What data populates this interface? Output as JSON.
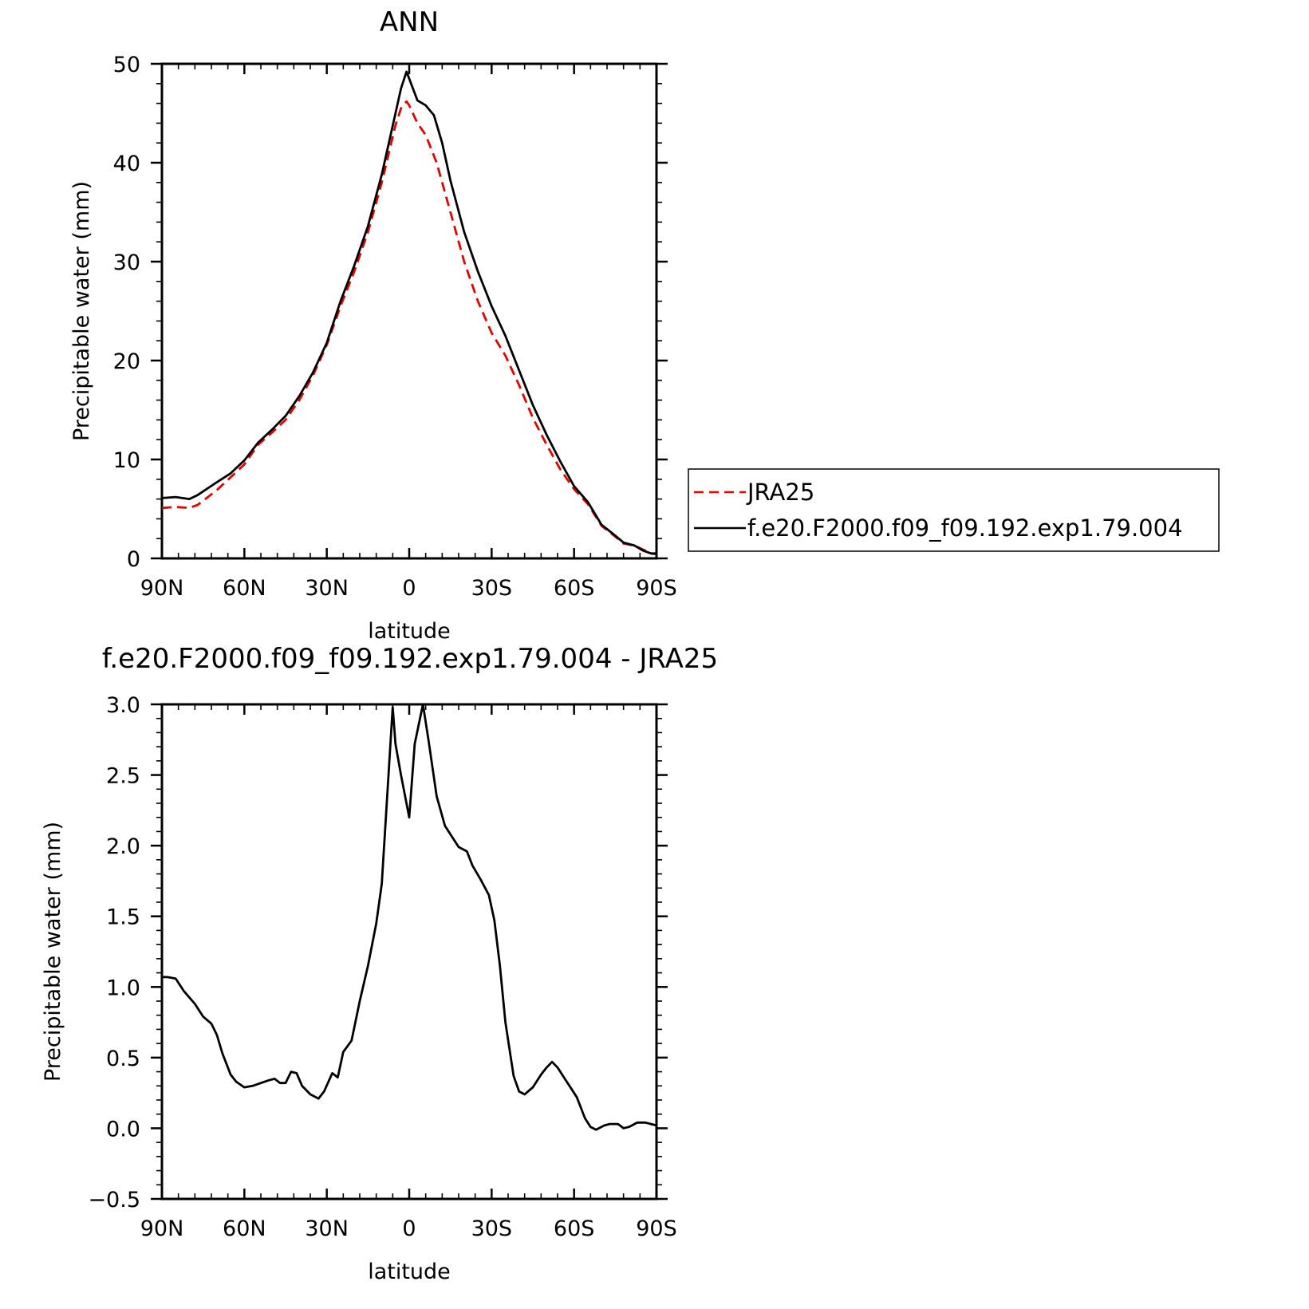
{
  "chart_data": [
    {
      "type": "line",
      "title": "ANN",
      "xlabel": "latitude",
      "ylabel": "Precipitable water (mm)",
      "xlim": [
        90,
        -90
      ],
      "ylim": [
        0,
        50
      ],
      "xticks": [
        90,
        60,
        30,
        0,
        -30,
        -60,
        -90
      ],
      "xtick_labels": [
        "90N",
        "60N",
        "30N",
        "0",
        "30S",
        "60S",
        "90S"
      ],
      "yticks": [
        0,
        10,
        20,
        30,
        40,
        50
      ],
      "ytick_labels": [
        "0",
        "10",
        "20",
        "30",
        "40",
        "50"
      ],
      "legend_position": "right",
      "series": [
        {
          "name": "JRA25",
          "color": "#e00000",
          "style": "dashed",
          "points": [
            [
              90,
              5.1
            ],
            [
              85,
              5.2
            ],
            [
              80,
              5.1
            ],
            [
              77,
              5.4
            ],
            [
              70,
              6.9
            ],
            [
              65,
              8.2
            ],
            [
              60,
              9.5
            ],
            [
              55,
              11.5
            ],
            [
              50,
              12.7
            ],
            [
              45,
              14.0
            ],
            [
              40,
              16.0
            ],
            [
              35,
              18.5
            ],
            [
              30,
              21.6
            ],
            [
              25,
              25.5
            ],
            [
              20,
              29.0
            ],
            [
              15,
              33.0
            ],
            [
              10,
              38.0
            ],
            [
              5,
              43.8
            ],
            [
              3,
              45.5
            ],
            [
              1,
              46.2
            ],
            [
              0,
              45.8
            ],
            [
              -3,
              44.0
            ],
            [
              -6,
              42.8
            ],
            [
              -10,
              40.0
            ],
            [
              -15,
              35.0
            ],
            [
              -20,
              30.0
            ],
            [
              -25,
              26.0
            ],
            [
              -30,
              22.8
            ],
            [
              -35,
              20.5
            ],
            [
              -40,
              17.5
            ],
            [
              -45,
              14.2
            ],
            [
              -50,
              11.5
            ],
            [
              -55,
              9.0
            ],
            [
              -60,
              7.0
            ],
            [
              -65,
              5.5
            ],
            [
              -70,
              3.3
            ],
            [
              -75,
              2.2
            ],
            [
              -78,
              1.5
            ],
            [
              -82,
              1.3
            ],
            [
              -85,
              0.9
            ],
            [
              -88,
              0.5
            ],
            [
              -90,
              0.4
            ]
          ]
        },
        {
          "name": "f.e20.F2000.f09_f09.192.exp1.79.004",
          "color": "#000000",
          "style": "solid",
          "points": [
            [
              90,
              6.1
            ],
            [
              85,
              6.2
            ],
            [
              80,
              6.0
            ],
            [
              77,
              6.4
            ],
            [
              70,
              7.7
            ],
            [
              65,
              8.6
            ],
            [
              60,
              9.9
            ],
            [
              55,
              11.7
            ],
            [
              50,
              13.0
            ],
            [
              45,
              14.4
            ],
            [
              40,
              16.4
            ],
            [
              35,
              18.8
            ],
            [
              30,
              21.8
            ],
            [
              25,
              26.0
            ],
            [
              20,
              29.6
            ],
            [
              15,
              33.6
            ],
            [
              10,
              38.8
            ],
            [
              5,
              45.0
            ],
            [
              3,
              47.5
            ],
            [
              1,
              49.2
            ],
            [
              0,
              48.5
            ],
            [
              -3,
              46.3
            ],
            [
              -6,
              45.8
            ],
            [
              -9,
              44.8
            ],
            [
              -12,
              42.0
            ],
            [
              -15,
              38.2
            ],
            [
              -20,
              33.0
            ],
            [
              -25,
              29.0
            ],
            [
              -30,
              25.5
            ],
            [
              -35,
              22.5
            ],
            [
              -40,
              19.0
            ],
            [
              -45,
              15.5
            ],
            [
              -50,
              12.5
            ],
            [
              -55,
              9.8
            ],
            [
              -60,
              7.3
            ],
            [
              -65,
              5.7
            ],
            [
              -70,
              3.4
            ],
            [
              -75,
              2.3
            ],
            [
              -78,
              1.6
            ],
            [
              -82,
              1.3
            ],
            [
              -85,
              0.8
            ],
            [
              -88,
              0.5
            ],
            [
              -90,
              0.5
            ]
          ]
        }
      ]
    },
    {
      "type": "line",
      "title": "f.e20.F2000.f09_f09.192.exp1.79.004 - JRA25",
      "xlabel": "latitude",
      "ylabel": "Precipitable water (mm)",
      "xlim": [
        90,
        -90
      ],
      "ylim": [
        -0.5,
        3.0
      ],
      "xticks": [
        90,
        60,
        30,
        0,
        -30,
        -60,
        -90
      ],
      "xtick_labels": [
        "90N",
        "60N",
        "30N",
        "0",
        "30S",
        "60S",
        "90S"
      ],
      "yticks": [
        -0.5,
        0.0,
        0.5,
        1.0,
        1.5,
        2.0,
        2.5,
        3.0
      ],
      "ytick_labels": [
        "−0.5",
        "0.0",
        "0.5",
        "1.0",
        "1.5",
        "2.0",
        "2.5",
        "3.0"
      ],
      "series": [
        {
          "color": "#000000",
          "style": "solid",
          "points": [
            [
              90,
              1.07
            ],
            [
              88,
              1.07
            ],
            [
              85,
              1.06
            ],
            [
              82,
              0.97
            ],
            [
              78,
              0.88
            ],
            [
              75,
              0.79
            ],
            [
              72,
              0.74
            ],
            [
              70,
              0.66
            ],
            [
              68,
              0.53
            ],
            [
              65,
              0.38
            ],
            [
              63,
              0.33
            ],
            [
              60,
              0.29
            ],
            [
              57,
              0.3
            ],
            [
              54,
              0.32
            ],
            [
              51,
              0.34
            ],
            [
              49,
              0.35
            ],
            [
              47,
              0.32
            ],
            [
              45,
              0.32
            ],
            [
              43,
              0.4
            ],
            [
              41,
              0.39
            ],
            [
              39,
              0.3
            ],
            [
              36,
              0.24
            ],
            [
              33,
              0.21
            ],
            [
              31,
              0.26
            ],
            [
              28,
              0.39
            ],
            [
              26,
              0.36
            ],
            [
              24,
              0.54
            ],
            [
              21,
              0.62
            ],
            [
              18,
              0.9
            ],
            [
              15,
              1.15
            ],
            [
              12,
              1.45
            ],
            [
              10,
              1.73
            ],
            [
              8,
              2.35
            ],
            [
              6,
              2.98
            ],
            [
              5,
              2.72
            ],
            [
              3,
              2.5
            ],
            [
              0,
              2.2
            ],
            [
              -2,
              2.72
            ],
            [
              -5,
              3.0
            ],
            [
              -7,
              2.75
            ],
            [
              -10,
              2.35
            ],
            [
              -13,
              2.14
            ],
            [
              -16,
              2.05
            ],
            [
              -18,
              1.99
            ],
            [
              -21,
              1.96
            ],
            [
              -23,
              1.86
            ],
            [
              -26,
              1.76
            ],
            [
              -29,
              1.65
            ],
            [
              -31,
              1.47
            ],
            [
              -33,
              1.15
            ],
            [
              -35,
              0.75
            ],
            [
              -38,
              0.37
            ],
            [
              -40,
              0.26
            ],
            [
              -42,
              0.24
            ],
            [
              -45,
              0.29
            ],
            [
              -48,
              0.38
            ],
            [
              -50,
              0.43
            ],
            [
              -52,
              0.47
            ],
            [
              -54,
              0.43
            ],
            [
              -57,
              0.34
            ],
            [
              -59,
              0.28
            ],
            [
              -61,
              0.22
            ],
            [
              -64,
              0.07
            ],
            [
              -66,
              0.01
            ],
            [
              -68,
              -0.01
            ],
            [
              -71,
              0.02
            ],
            [
              -73,
              0.03
            ],
            [
              -76,
              0.03
            ],
            [
              -78,
              0.0
            ],
            [
              -80,
              0.01
            ],
            [
              -83,
              0.04
            ],
            [
              -86,
              0.04
            ],
            [
              -88,
              0.03
            ],
            [
              -90,
              0.02
            ]
          ]
        }
      ]
    }
  ]
}
